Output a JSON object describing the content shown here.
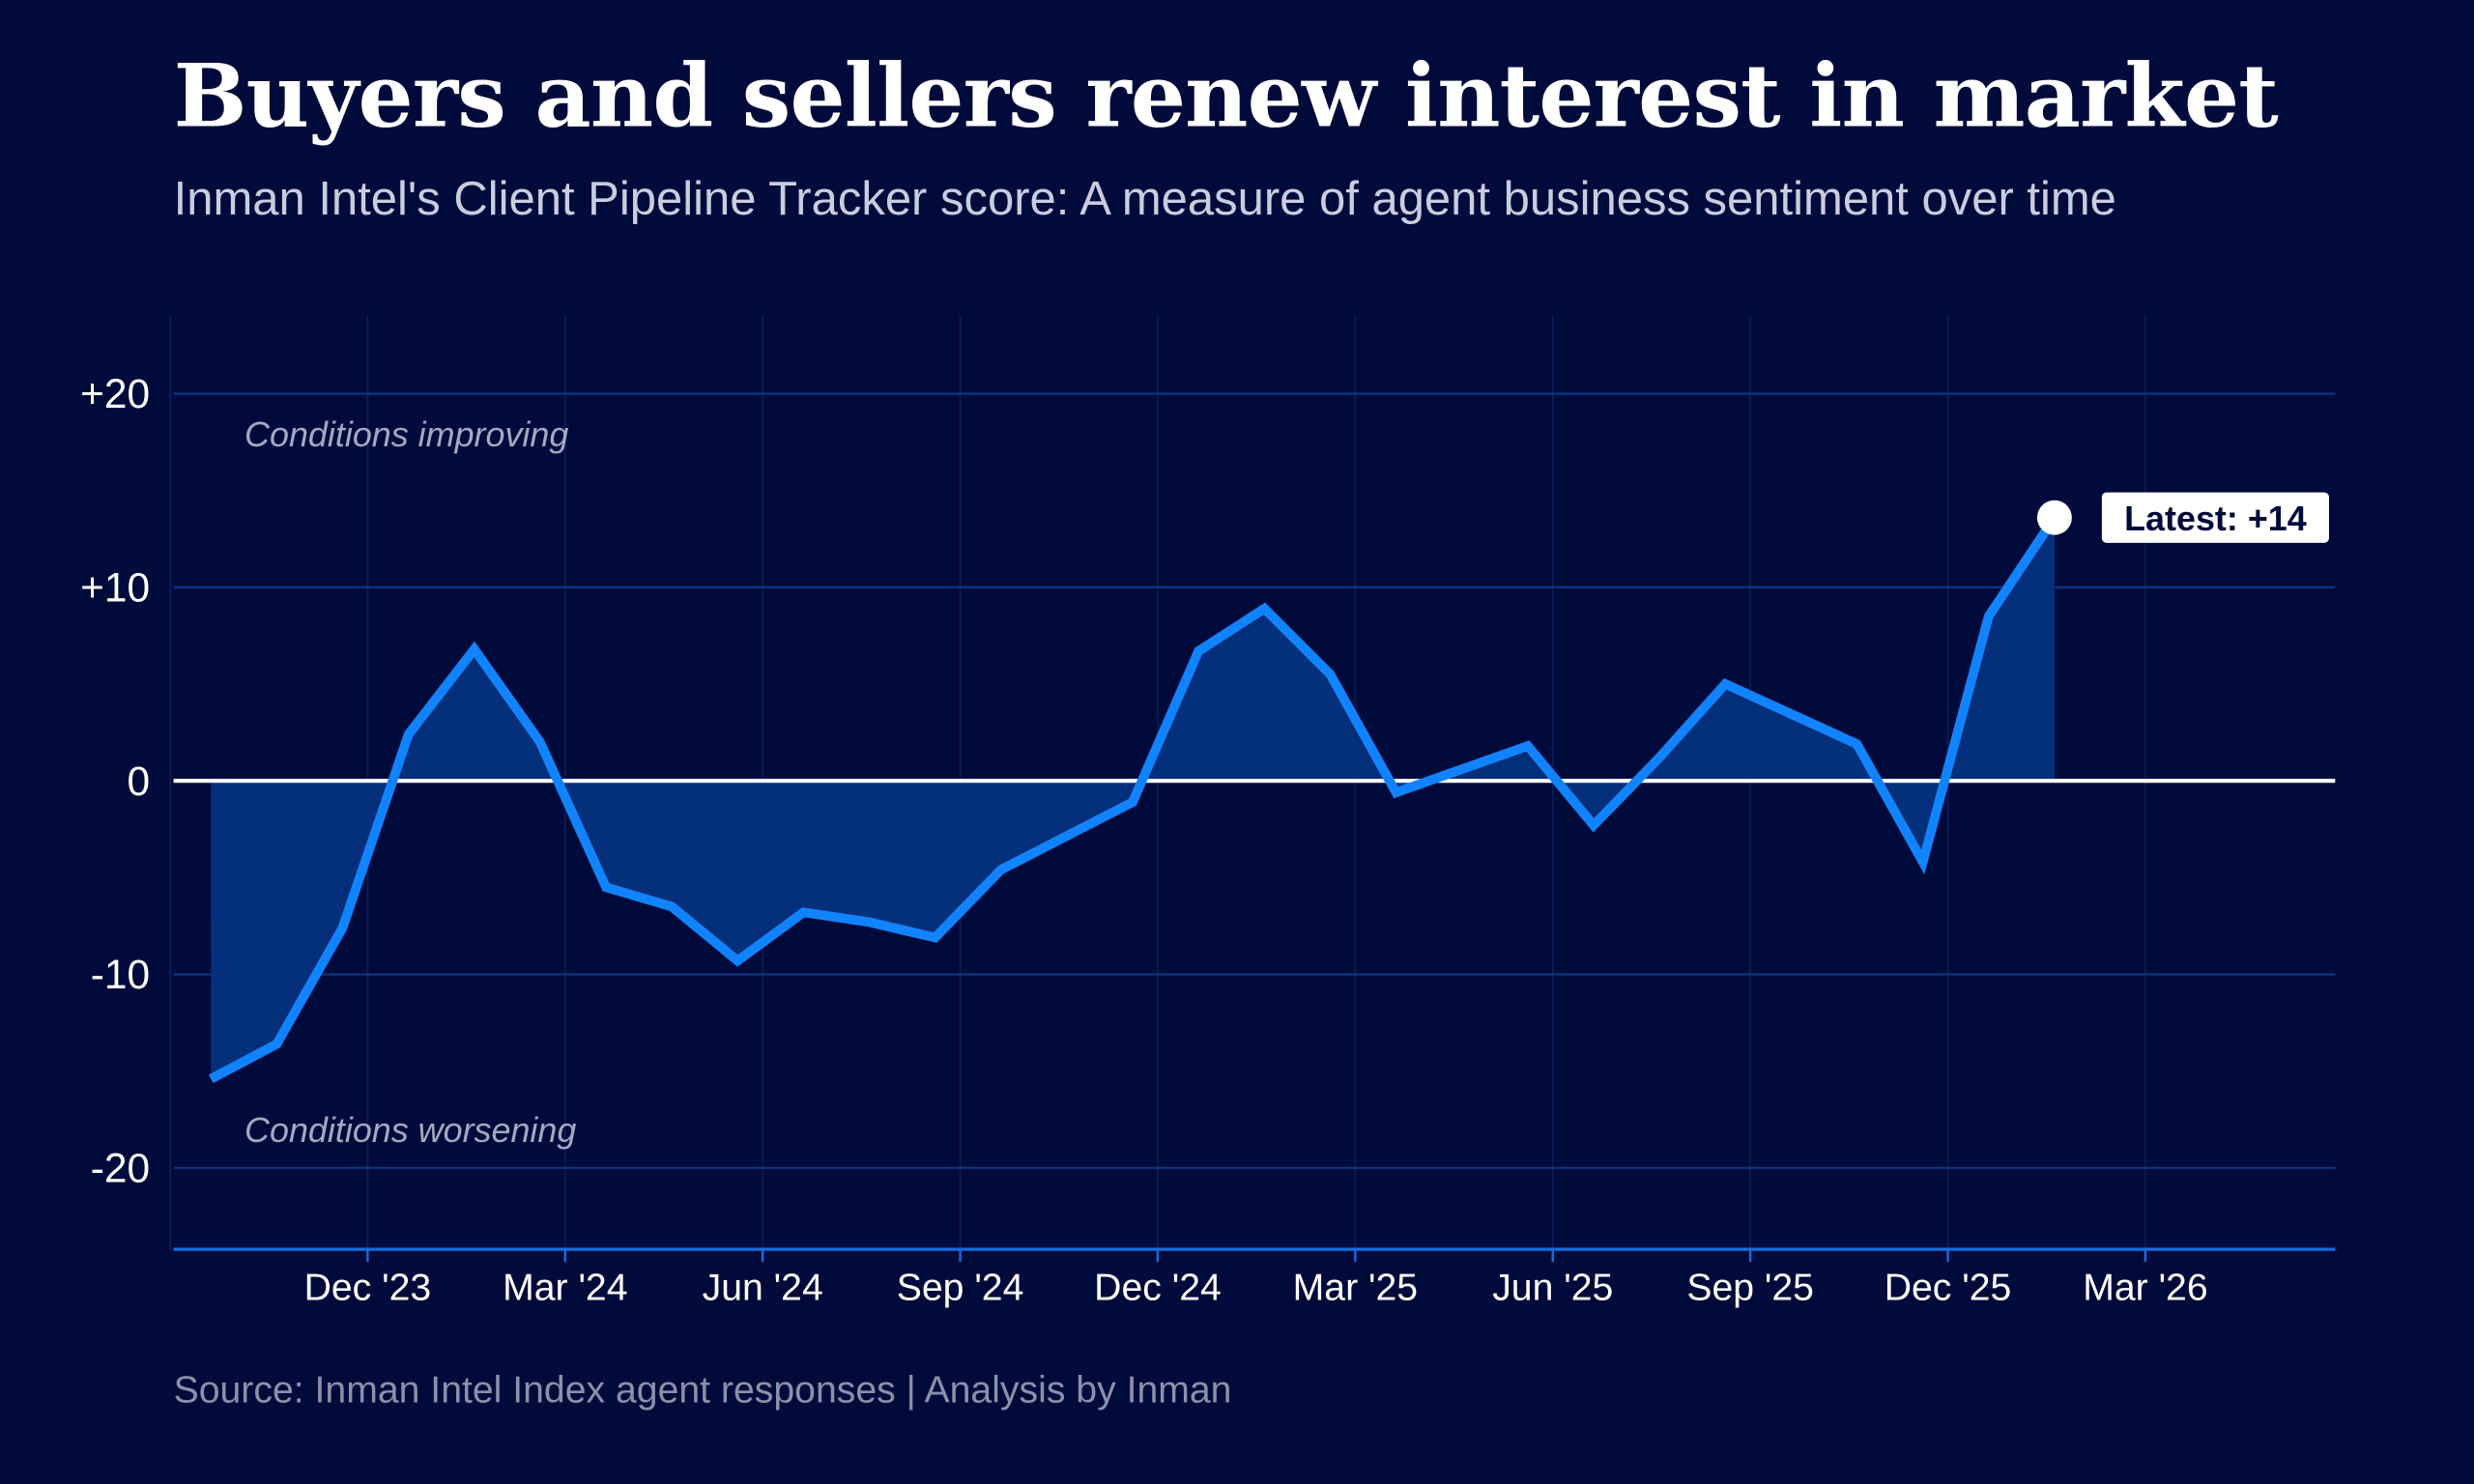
{
  "title": "Buyers and sellers renew interest in market",
  "subtitle": "Inman Intel's Client Pipeline Tracker score: A measure of agent business sentiment over time",
  "source": "Source: Inman Intel Index agent responses | Analysis by Inman",
  "colors": {
    "background": "#010b3b",
    "line": "#1283ff",
    "area": "#042f7a",
    "gridline": "#0b3a8c",
    "zero_line": "#ffffff"
  },
  "chart_data": {
    "type": "area",
    "title": "Buyers and sellers renew interest in market",
    "xlabel": "",
    "ylabel": "",
    "ylim": [
      -24,
      24
    ],
    "grid": true,
    "y_ticks": [
      {
        "value": 20,
        "label": "+20"
      },
      {
        "value": 10,
        "label": "+10"
      },
      {
        "value": 0,
        "label": "0"
      },
      {
        "value": -10,
        "label": "-10"
      },
      {
        "value": -20,
        "label": "-20"
      }
    ],
    "x_ticks": [
      {
        "date": "2023-12",
        "label": "Dec '23"
      },
      {
        "date": "2024-03",
        "label": "Mar '24"
      },
      {
        "date": "2024-06",
        "label": "Jun '24"
      },
      {
        "date": "2024-09",
        "label": "Sep '24"
      },
      {
        "date": "2024-12",
        "label": "Dec '24"
      },
      {
        "date": "2025-03",
        "label": "Mar '25"
      },
      {
        "date": "2025-06",
        "label": "Jun '25"
      },
      {
        "date": "2025-09",
        "label": "Sep '25"
      },
      {
        "date": "2025-12",
        "label": "Dec '25"
      },
      {
        "date": "2026-03",
        "label": "Mar '26"
      }
    ],
    "x_range": [
      "2023-08",
      "2026-07"
    ],
    "series": [
      {
        "points": [
          {
            "date": "2023-09",
            "value": -15.4
          },
          {
            "date": "2023-10",
            "value": -13.6
          },
          {
            "date": "2023-11",
            "value": -7.6
          },
          {
            "date": "2023-12",
            "value": 2.4
          },
          {
            "date": "2024-01",
            "value": 6.8
          },
          {
            "date": "2024-02",
            "value": 2.0
          },
          {
            "date": "2024-03",
            "value": -5.5
          },
          {
            "date": "2024-04",
            "value": -6.5
          },
          {
            "date": "2024-05",
            "value": -9.3
          },
          {
            "date": "2024-06",
            "value": -6.8
          },
          {
            "date": "2024-07",
            "value": -7.3
          },
          {
            "date": "2024-08",
            "value": -8.1
          },
          {
            "date": "2024-09",
            "value": -4.6
          },
          {
            "date": "2024-11",
            "value": -1.1
          },
          {
            "date": "2024-12",
            "value": 6.7
          },
          {
            "date": "2025-01",
            "value": 8.9
          },
          {
            "date": "2025-02",
            "value": 5.5
          },
          {
            "date": "2025-03",
            "value": -0.6
          },
          {
            "date": "2025-05",
            "value": 1.8
          },
          {
            "date": "2025-06",
            "value": -2.3
          },
          {
            "date": "2025-07",
            "value": 1.2
          },
          {
            "date": "2025-08",
            "value": 5.0
          },
          {
            "date": "2025-10",
            "value": 1.9
          },
          {
            "date": "2025-11",
            "value": -4.2
          },
          {
            "date": "2025-12",
            "value": 8.5
          },
          {
            "date": "2026-01",
            "value": 13.6
          }
        ]
      }
    ],
    "annotations": {
      "improving": "Conditions improving",
      "worsening": "Conditions worsening",
      "latest": "Latest: +14"
    }
  }
}
